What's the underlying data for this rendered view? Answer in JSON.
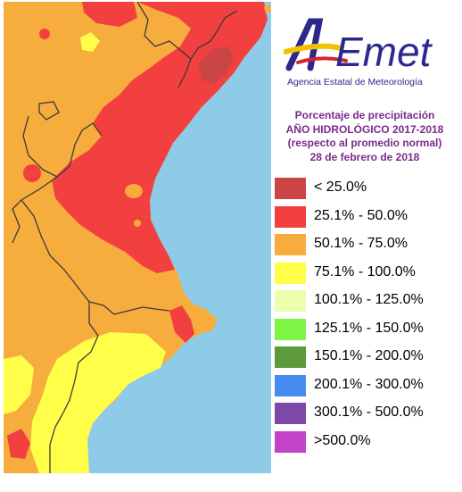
{
  "logo": {
    "wordmark": "AEmet",
    "subtitle": "Agencia Estatal de Meteorología",
    "colors": {
      "blue": "#2b2a8c",
      "yellow": "#f2c200",
      "red": "#d4242a"
    }
  },
  "title": {
    "line1": "Porcentaje de precipitación",
    "line2": "AÑO HIDROLÓGICO 2017-2018",
    "line3": "(respecto al promedio normal)",
    "line4": "28 de febrero de 2018"
  },
  "legend": [
    {
      "label": "< 25.0%",
      "color": "#cc4545"
    },
    {
      "label": "25.1% - 50.0%",
      "color": "#f24040"
    },
    {
      "label": "50.1% - 75.0%",
      "color": "#f7ad3d"
    },
    {
      "label": "75.1% - 100.0%",
      "color": "#ffff4a"
    },
    {
      "label": "100.1% - 125.0%",
      "color": "#ecffaf"
    },
    {
      "label": "125.1% - 150.0%",
      "color": "#7ef545"
    },
    {
      "label": "150.1% - 200.0%",
      "color": "#5c9a3c"
    },
    {
      "label": "200.1% - 300.0%",
      "color": "#468cf0"
    },
    {
      "label": "300.1% - 500.0%",
      "color": "#7d48a6"
    },
    {
      "label": ">500.0%",
      "color": "#c243c5"
    }
  ],
  "map": {
    "sea_color": "#8ecbe8",
    "border_color": "#3a3a3a"
  }
}
